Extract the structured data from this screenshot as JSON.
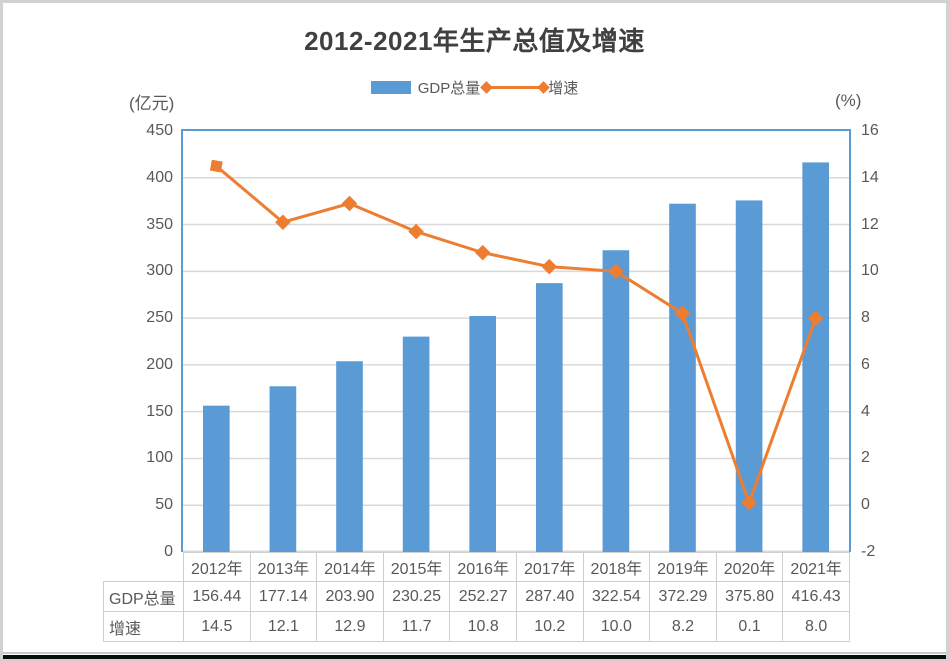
{
  "title": "2012-2021年生产总值及增速",
  "legend": {
    "items": [
      {
        "label": "GDP总量",
        "type": "bar",
        "color": "#5B9BD5"
      },
      {
        "label": "增速",
        "type": "line",
        "color": "#ED7D31"
      }
    ]
  },
  "axes": {
    "left_unit": "(亿元)",
    "right_unit": "(%)",
    "left_ticks": [
      "450",
      "400",
      "350",
      "300",
      "250",
      "200",
      "150",
      "100",
      "50",
      "0"
    ],
    "right_ticks": [
      "16",
      "14",
      "12",
      "10",
      "8",
      "6",
      "4",
      "2",
      "0",
      "-2"
    ]
  },
  "chart_data": {
    "type": "bar",
    "subtype": "combo-bar-line",
    "title": "2012-2021年生产总值及增速",
    "categories": [
      "2012年",
      "2013年",
      "2014年",
      "2015年",
      "2016年",
      "2017年",
      "2018年",
      "2019年",
      "2020年",
      "2021年"
    ],
    "series": [
      {
        "name": "GDP总量",
        "type": "bar",
        "axis": "left",
        "color": "#5B9BD5",
        "values": [
          156.44,
          177.14,
          203.9,
          230.25,
          252.27,
          287.4,
          322.54,
          372.29,
          375.8,
          416.43
        ]
      },
      {
        "name": "增速",
        "type": "line",
        "axis": "right",
        "color": "#ED7D31",
        "values": [
          14.5,
          12.1,
          12.9,
          11.7,
          10.8,
          10.2,
          10.0,
          8.2,
          0.1,
          8.0
        ]
      }
    ],
    "left_ylabel": "(亿元)",
    "right_ylabel": "(%)",
    "left_ylim": [
      0,
      450
    ],
    "right_ylim": [
      -2,
      16
    ],
    "left_tick_step": 50,
    "right_tick_step": 2,
    "grid": true,
    "legend_position": "top",
    "data_table_shown": true
  },
  "table": {
    "rows": [
      {
        "label": "GDP总量",
        "values": [
          "156.44",
          "177.14",
          "203.90",
          "230.25",
          "252.27",
          "287.40",
          "322.54",
          "372.29",
          "375.80",
          "416.43"
        ]
      },
      {
        "label": "增速",
        "values": [
          "14.5",
          "12.1",
          "12.9",
          "11.7",
          "10.8",
          "10.2",
          "10.0",
          "8.2",
          "0.1",
          "8.0"
        ]
      }
    ]
  },
  "colors": {
    "bar": "#5B9BD5",
    "line": "#ED7D31",
    "grid": "#D9D9D9",
    "plot_border": "#5B9BD5",
    "axis_text": "#595959",
    "title_text": "#404040",
    "table_border": "#CFCFCF"
  }
}
